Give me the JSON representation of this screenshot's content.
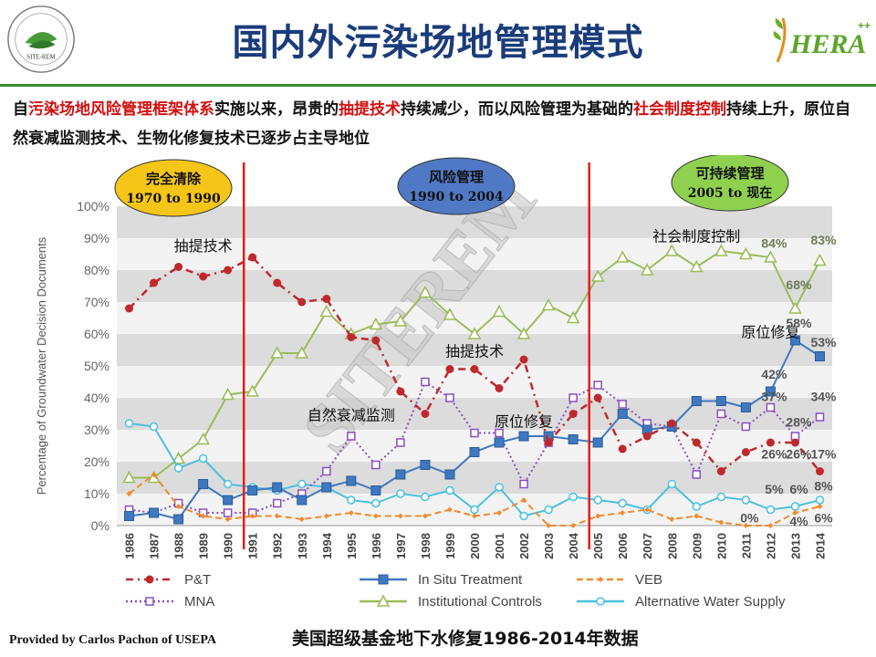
{
  "slide": {
    "title": "国内外污染场地管理模式",
    "intro": [
      {
        "t": "自",
        "red": false
      },
      {
        "t": "污染场地风险管理框架体系",
        "red": true
      },
      {
        "t": "实施以来，昂贵的",
        "red": false
      },
      {
        "t": "抽提技术",
        "red": true
      },
      {
        "t": "持续减少，而以风险管理为基础的",
        "red": false
      },
      {
        "t": "社会制度控制",
        "red": true
      },
      {
        "t": "持续上升，原位自然衰减监测技术、生物化修复技术已逐步占主导地位",
        "red": false
      }
    ],
    "logo_left_text": "SITE-REM",
    "logo_right_text": "HERA",
    "logo_right_sup": "++",
    "footer_left": "Provided by Carlos Pachon of USEPA",
    "footer_right": "美国超级基金地下水修复1986-2014年数据",
    "watermark": "SITEREM"
  },
  "eras": [
    {
      "line1": "完全清除",
      "line2": "1970 to 1990",
      "fill": "#f5c518",
      "text_color": "#111111"
    },
    {
      "line1": "风险管理",
      "line2": "1990 to 2004",
      "fill": "#4f79c4",
      "text_color": "#111111"
    },
    {
      "line1": "可持续管理",
      "line2": "2005 to 现在",
      "fill": "#8fd14f",
      "text_color": "#111111"
    }
  ],
  "chart_data": {
    "type": "line",
    "ylabel": "Percentage of Groundwater Decision Documents",
    "ylim": [
      0,
      100
    ],
    "yticks": [
      "0%",
      "10%",
      "20%",
      "30%",
      "40%",
      "50%",
      "60%",
      "70%",
      "80%",
      "90%",
      "100%"
    ],
    "x": [
      "1986",
      "1987",
      "1988",
      "1989",
      "1990",
      "1991",
      "1992",
      "1993",
      "1994",
      "1995",
      "1996",
      "1997",
      "1998",
      "1999",
      "2000",
      "2001",
      "2002",
      "2003",
      "2004",
      "2005",
      "2006",
      "2007",
      "2008",
      "2009",
      "2010",
      "2011",
      "2012",
      "2013",
      "2014"
    ],
    "era_dividers": [
      "1991",
      "2005"
    ],
    "series": [
      {
        "name": "P&T",
        "color": "#c0282d",
        "marker": "circle",
        "dash": "8,5,2,5",
        "values": [
          68,
          76,
          81,
          78,
          80,
          84,
          76,
          70,
          71,
          59,
          58,
          42,
          35,
          49,
          49,
          43,
          52,
          26,
          35,
          40,
          24,
          28,
          32,
          26,
          17,
          23,
          26,
          26,
          17
        ]
      },
      {
        "name": "In Situ Treatment",
        "color": "#3f78bf",
        "marker": "square",
        "dash": "",
        "values": [
          3,
          4,
          2,
          13,
          8,
          11,
          12,
          8,
          12,
          14,
          11,
          16,
          19,
          16,
          23,
          26,
          28,
          28,
          27,
          26,
          35,
          30,
          31,
          39,
          39,
          37,
          42,
          58,
          53
        ]
      },
      {
        "name": "VEB",
        "color": "#f28a2e",
        "marker": "diamond",
        "dash": "7,4",
        "values": [
          10,
          16,
          6,
          3,
          2,
          3,
          3,
          2,
          3,
          4,
          3,
          3,
          3,
          5,
          3,
          4,
          8,
          0,
          0,
          3,
          4,
          5,
          2,
          3,
          1,
          0,
          0,
          4,
          6
        ]
      },
      {
        "name": "MNA",
        "color": "#8a4fbf",
        "marker": "square-open",
        "dash": "2,3",
        "values": [
          5,
          4,
          7,
          4,
          4,
          4,
          7,
          10,
          17,
          28,
          19,
          26,
          45,
          40,
          29,
          29,
          13,
          26,
          40,
          44,
          38,
          32,
          31,
          16,
          35,
          31,
          37,
          28,
          34
        ]
      },
      {
        "name": "Institutional Controls",
        "color": "#9bbb59",
        "marker": "triangle-open",
        "dash": "",
        "values": [
          15,
          15,
          21,
          27,
          41,
          42,
          54,
          54,
          67,
          60,
          63,
          64,
          73,
          66,
          60,
          67,
          60,
          69,
          65,
          78,
          84,
          80,
          86,
          81,
          86,
          85,
          84,
          68,
          83
        ]
      },
      {
        "name": "Alternative Water Supply",
        "color": "#4bc0e0",
        "marker": "circle-open",
        "dash": "",
        "values": [
          32,
          31,
          18,
          21,
          13,
          12,
          11,
          13,
          12,
          8,
          7,
          10,
          9,
          11,
          5,
          12,
          3,
          5,
          9,
          8,
          7,
          5,
          13,
          6,
          9,
          8,
          5,
          6,
          8
        ]
      }
    ],
    "annotations": [
      {
        "text": "抽提技术",
        "x": "1989",
        "y": 86
      },
      {
        "text": "抽提技术",
        "x": "2000",
        "y": 53
      },
      {
        "text": "自然衰减监测",
        "x": "1995",
        "y": 33
      },
      {
        "text": "原位修复",
        "x": "2002",
        "y": 31
      },
      {
        "text": "社会制度控制",
        "x": "2009",
        "y": 89
      },
      {
        "text": "原位修复",
        "x": "2012",
        "y": 59
      }
    ],
    "data_labels": [
      {
        "text": "84%",
        "x": "2012",
        "y": 87,
        "color": "#6e7d56"
      },
      {
        "text": "83%",
        "x": "2014",
        "y": 88,
        "color": "#6e7d56"
      },
      {
        "text": "68%",
        "x": "2013",
        "y": 74,
        "color": "#6e7d56"
      },
      {
        "text": "58%",
        "x": "2013",
        "y": 62,
        "color": "#555555"
      },
      {
        "text": "53%",
        "x": "2014",
        "y": 56,
        "color": "#555555"
      },
      {
        "text": "42%",
        "x": "2012",
        "y": 46,
        "color": "#555555"
      },
      {
        "text": "37%",
        "x": "2012",
        "y": 39,
        "color": "#555555"
      },
      {
        "text": "34%",
        "x": "2014",
        "y": 39,
        "color": "#555555"
      },
      {
        "text": "28%",
        "x": "2013",
        "y": 31,
        "color": "#555555"
      },
      {
        "text": "26%",
        "x": "2012",
        "y": 21,
        "color": "#555555"
      },
      {
        "text": "26%",
        "x": "2013",
        "y": 21,
        "color": "#555555"
      },
      {
        "text": "17%",
        "x": "2014",
        "y": 21,
        "color": "#555555"
      },
      {
        "text": "5%",
        "x": "2012",
        "y": 10,
        "color": "#555555"
      },
      {
        "text": "6%",
        "x": "2013",
        "y": 10,
        "color": "#555555"
      },
      {
        "text": "8%",
        "x": "2014",
        "y": 11,
        "color": "#555555"
      },
      {
        "text": "0%",
        "x": "2011",
        "y": 1,
        "color": "#555555"
      },
      {
        "text": "4%",
        "x": "2013",
        "y": 0,
        "color": "#555555"
      },
      {
        "text": "6%",
        "x": "2014",
        "y": 1,
        "color": "#555555"
      }
    ],
    "legend_position": "bottom"
  }
}
